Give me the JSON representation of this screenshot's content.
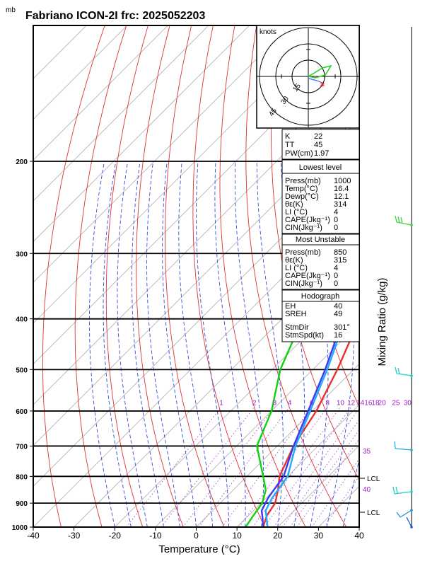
{
  "header": {
    "unit_label": "mb",
    "title": "Fabriano ICON-2I frc: 2025052203"
  },
  "chart_data": {
    "type": "line",
    "title": "Fabriano ICON-2I frc: 2025052203",
    "xlabel": "Temperature (°C)",
    "ylabel": "mb",
    "xlim": [
      -40,
      40
    ],
    "ylim": [
      1000,
      100
    ],
    "x_ticks": [
      -40,
      -30,
      -20,
      -10,
      0,
      10,
      20,
      30,
      40
    ],
    "y_ticks": [
      1000,
      900,
      800,
      700,
      600,
      500,
      400,
      300,
      200
    ],
    "mixing_ratio_label": "Mixing Ratio (g/kg)",
    "mixing_ratio_ticks": [
      "1",
      "2",
      "3",
      "4",
      "6",
      "8",
      "10",
      "12",
      "14",
      "16",
      "18",
      "20",
      "25",
      "30"
    ],
    "theta_e_labels": [
      "35",
      "40"
    ],
    "lcl_labels": [
      "LCL",
      "LCL"
    ],
    "series": [
      {
        "name": "temperature",
        "color": "#e8312e",
        "points": [
          [
            16.4,
            1000
          ],
          [
            14.5,
            950
          ],
          [
            13.5,
            900
          ],
          [
            11,
            850
          ],
          [
            8,
            800
          ],
          [
            4,
            700
          ],
          [
            1,
            600
          ],
          [
            -4,
            500
          ],
          [
            -11,
            400
          ],
          [
            -20,
            300
          ],
          [
            -30,
            250
          ]
        ]
      },
      {
        "name": "dewpoint",
        "color": "#10d010",
        "points": [
          [
            12.1,
            1000
          ],
          [
            11.2,
            950
          ],
          [
            10.3,
            900
          ],
          [
            8,
            850
          ],
          [
            4,
            800
          ],
          [
            -5,
            700
          ],
          [
            -10,
            600
          ],
          [
            -18,
            500
          ],
          [
            -25,
            400
          ],
          [
            -32,
            300
          ],
          [
            -40,
            250
          ]
        ]
      },
      {
        "name": "parcel",
        "color": "#3a3af5",
        "points": [
          [
            16.4,
            1000
          ],
          [
            14,
            960
          ],
          [
            12,
            930
          ],
          [
            10.5,
            880
          ],
          [
            9,
            800
          ],
          [
            4,
            700
          ],
          [
            -1,
            600
          ],
          [
            -7,
            500
          ],
          [
            -15,
            400
          ],
          [
            -26,
            300
          ],
          [
            -37,
            200
          ],
          [
            -52,
            100
          ]
        ]
      },
      {
        "name": "virtual",
        "color": "#22aaff",
        "points": [
          [
            17.5,
            1000
          ],
          [
            15,
            960
          ],
          [
            13,
            930
          ],
          [
            11.5,
            880
          ],
          [
            10,
            800
          ],
          [
            4.5,
            700
          ],
          [
            -0.5,
            600
          ],
          [
            -6.5,
            500
          ],
          [
            -14.5,
            400
          ],
          [
            -25.5,
            300
          ],
          [
            -36.5,
            200
          ],
          [
            -51.5,
            100
          ]
        ]
      }
    ]
  },
  "hodograph": {
    "unit_label": "knots",
    "ring_labels": [
      "15",
      "30",
      "45"
    ]
  },
  "indices_top": [
    {
      "label": "K",
      "value": "22"
    },
    {
      "label": "TT",
      "value": "45"
    },
    {
      "label": "PW(cm)",
      "value": "1.97"
    }
  ],
  "lowest_level": {
    "title": "Lowest level",
    "rows": [
      {
        "label": "Press(mb)",
        "value": "1000"
      },
      {
        "label": "Temp(°C)",
        "value": "16.4"
      },
      {
        "label": "Dewp(°C)",
        "value": "12.1"
      },
      {
        "label": "θε(K)",
        "value": "314"
      },
      {
        "label": "LI (°C)",
        "value": "4"
      },
      {
        "label": "CAPE(Jkg⁻¹)",
        "value": "0"
      },
      {
        "label": "CIN(Jkg⁻¹)",
        "value": "0"
      }
    ]
  },
  "most_unstable": {
    "title": "Most Unstable",
    "rows": [
      {
        "label": "Press(mb)",
        "value": "850"
      },
      {
        "label": "θε(K)",
        "value": "315"
      },
      {
        "label": "LI (°C)",
        "value": "4"
      },
      {
        "label": "CAPE(Jkg⁻¹)",
        "value": "0"
      },
      {
        "label": "CIN(Jkg⁻¹)",
        "value": "0"
      }
    ]
  },
  "hodo_box": {
    "title": "Hodograph",
    "rows": [
      {
        "label": "EH",
        "value": "40"
      },
      {
        "label": "SREH",
        "value": "49"
      },
      {
        "label": "StmDir",
        "value": "301°"
      },
      {
        "label": "StmSpd(kt)",
        "value": "16"
      }
    ]
  }
}
